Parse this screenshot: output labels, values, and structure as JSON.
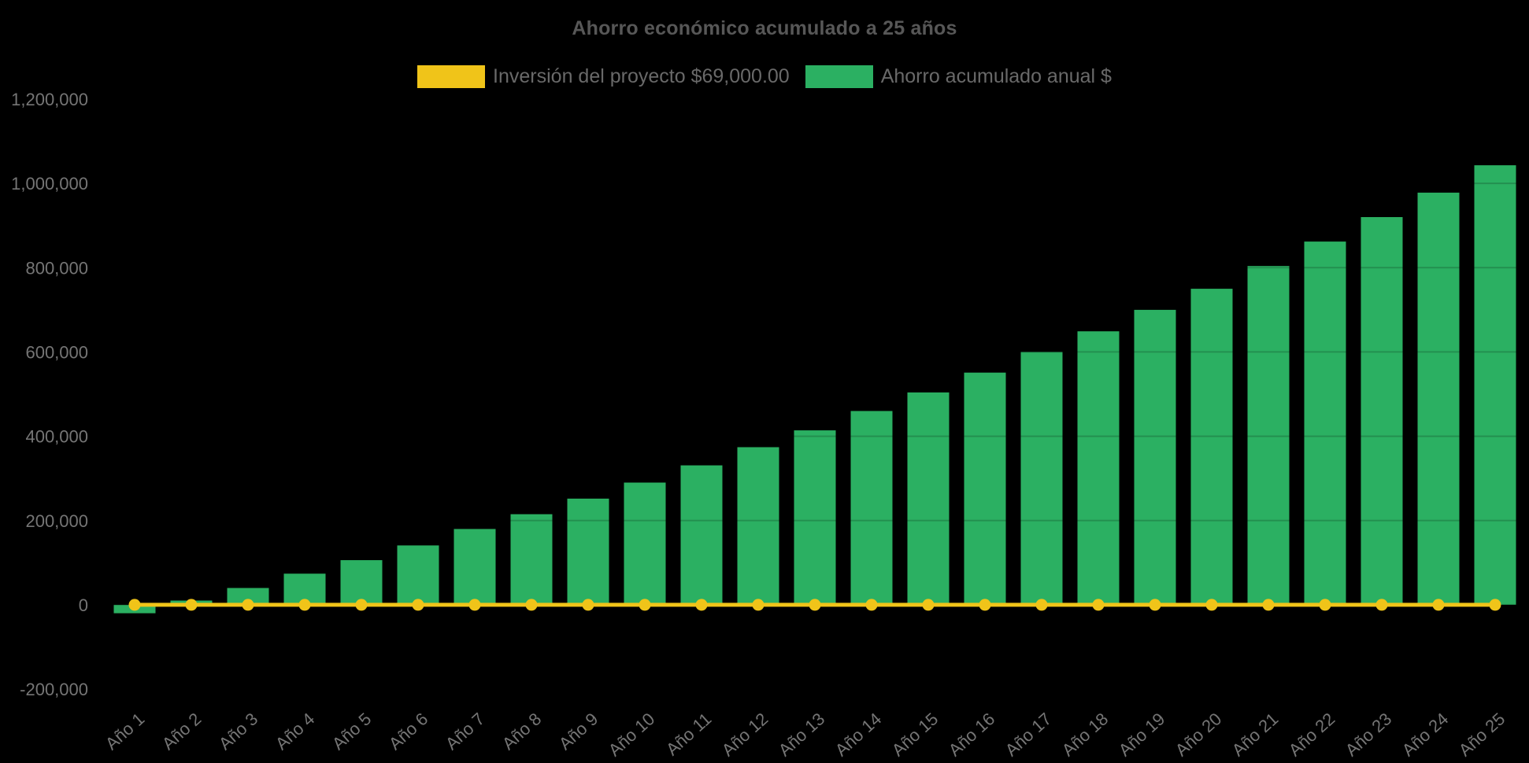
{
  "title": "Ahorro económico acumulado a 25 años",
  "legend": {
    "position": "top",
    "items": [
      {
        "label": "Inversión del proyecto $69,000.00",
        "color": "#f0c419",
        "series_type": "line"
      },
      {
        "label": "Ahorro acumulado anual $",
        "color": "#2bb062",
        "series_type": "bar"
      }
    ]
  },
  "colors": {
    "background": "#000000",
    "bar_green": "#2bb062",
    "line_yellow": "#f0c419",
    "title_text": "#575757",
    "legend_text": "#696969",
    "tick_text": "#757575"
  },
  "chart_data": {
    "type": "bar",
    "title": "Ahorro económico acumulado a 25 años",
    "xlabel": "",
    "ylabel": "",
    "categories": [
      "Año 1",
      "Año 2",
      "Año 3",
      "Año 4",
      "Año 5",
      "Año 6",
      "Año 7",
      "Año 8",
      "Año 9",
      "Año 10",
      "Año 11",
      "Año 12",
      "Año 13",
      "Año 14",
      "Año 15",
      "Año 16",
      "Año 17",
      "Año 18",
      "Año 19",
      "Año 20",
      "Año 21",
      "Año 22",
      "Año 23",
      "Año 24",
      "Año 25"
    ],
    "series": [
      {
        "name": "Ahorro acumulado anual $",
        "type": "bar",
        "color": "#2bb062",
        "values": [
          -20000,
          10000,
          40000,
          74000,
          106000,
          141000,
          180000,
          215000,
          252000,
          290000,
          331000,
          374000,
          414000,
          460000,
          504000,
          551000,
          600000,
          649000,
          700000,
          750000,
          804000,
          862000,
          920000,
          978000,
          1043000
        ]
      },
      {
        "name": "Inversión del proyecto $69,000.00",
        "type": "line",
        "color": "#f0c419",
        "point_style": "circle",
        "values": [
          0,
          0,
          0,
          0,
          0,
          0,
          0,
          0,
          0,
          0,
          0,
          0,
          0,
          0,
          0,
          0,
          0,
          0,
          0,
          0,
          0,
          0,
          0,
          0,
          0
        ]
      }
    ],
    "ylim": [
      -200000,
      1200000
    ],
    "ytick_step": 200000,
    "ytick_labels": [
      "-200,000",
      "0",
      "200,000",
      "400,000",
      "600,000",
      "800,000",
      "1,000,000",
      "1,200,000"
    ],
    "grid": "off",
    "legend_position": "top",
    "xtick_rotation_deg": -42
  }
}
